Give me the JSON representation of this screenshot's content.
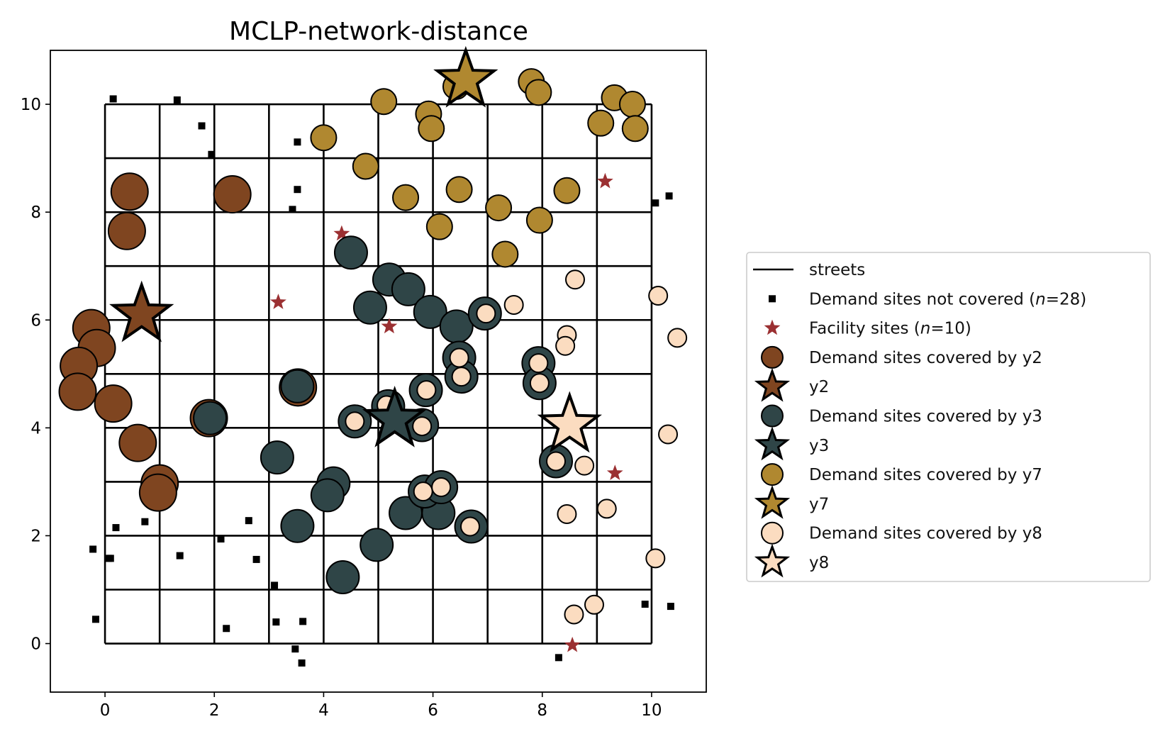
{
  "chart_data": {
    "type": "scatter",
    "title": "MCLP-network-distance",
    "xlabel": "",
    "ylabel": "",
    "xlim": [
      -1,
      11
    ],
    "ylim": [
      -0.9,
      11
    ],
    "xticks": [
      0,
      2,
      4,
      6,
      8,
      10
    ],
    "yticks": [
      0,
      2,
      4,
      6,
      8,
      10
    ],
    "streets": {
      "min": 0,
      "max": 10,
      "step": 1
    },
    "colors": {
      "y2": "#7f4520",
      "y3": "#2f4547",
      "y7": "#b08830",
      "y8": "#fbdcc0",
      "facility": "#9b3032",
      "uncovered": "#000000",
      "street": "#000000"
    },
    "legend": {
      "position": "center-right",
      "entries": [
        {
          "key": "streets",
          "label": "streets"
        },
        {
          "key": "uncovered",
          "label": "Demand sites not covered (",
          "italic": "n",
          "rest": "=28)"
        },
        {
          "key": "facility",
          "label": "Facility sites (",
          "italic": "n",
          "rest": "=10)"
        },
        {
          "key": "y2_sites",
          "label": "Demand sites covered by y2"
        },
        {
          "key": "y2_star",
          "label": "y2"
        },
        {
          "key": "y3_sites",
          "label": "Demand sites covered by y3"
        },
        {
          "key": "y3_star",
          "label": "y3"
        },
        {
          "key": "y7_sites",
          "label": "Demand sites covered by y7"
        },
        {
          "key": "y7_star",
          "label": "y7"
        },
        {
          "key": "y8_sites",
          "label": "Demand sites covered by y8"
        },
        {
          "key": "y8_star",
          "label": "y8"
        }
      ]
    },
    "uncovered": [
      [
        0.15,
        10.1
      ],
      [
        1.32,
        10.08
      ],
      [
        1.77,
        9.6
      ],
      [
        1.95,
        9.07
      ],
      [
        3.52,
        9.3
      ],
      [
        3.52,
        8.42
      ],
      [
        3.43,
        8.05
      ],
      [
        10.07,
        8.17
      ],
      [
        10.32,
        8.3
      ],
      [
        -0.22,
        1.75
      ],
      [
        0.06,
        1.58
      ],
      [
        0.1,
        1.58
      ],
      [
        0.2,
        2.15
      ],
      [
        0.73,
        2.26
      ],
      [
        1.37,
        1.63
      ],
      [
        2.12,
        1.94
      ],
      [
        2.63,
        2.28
      ],
      [
        2.77,
        1.56
      ],
      [
        3.1,
        1.08
      ],
      [
        -0.17,
        0.45
      ],
      [
        2.22,
        0.28
      ],
      [
        3.13,
        0.4
      ],
      [
        3.62,
        0.41
      ],
      [
        3.48,
        -0.1
      ],
      [
        3.6,
        -0.36
      ],
      [
        8.3,
        -0.26
      ],
      [
        9.88,
        0.73
      ],
      [
        10.35,
        0.69
      ]
    ],
    "facilities": [
      [
        4.33,
        7.6
      ],
      [
        3.17,
        6.33
      ],
      [
        5.2,
        5.88
      ],
      [
        9.15,
        8.57
      ],
      [
        9.33,
        3.16
      ],
      [
        8.55,
        -0.03
      ],
      [
        0.67,
        6.1
      ],
      [
        5.3,
        4.15
      ],
      [
        6.6,
        10.45
      ],
      [
        8.5,
        4.05
      ]
    ],
    "selected": [
      {
        "name": "y2",
        "x": 0.67,
        "y": 6.1
      },
      {
        "name": "y3",
        "x": 5.3,
        "y": 4.15
      },
      {
        "name": "y7",
        "x": 6.6,
        "y": 10.45
      },
      {
        "name": "y8",
        "x": 8.5,
        "y": 4.05
      }
    ],
    "covered": {
      "y2": [
        [
          0.45,
          8.38
        ],
        [
          0.4,
          7.65
        ],
        [
          -0.25,
          5.85
        ],
        [
          -0.15,
          5.48
        ],
        [
          -0.48,
          5.15
        ],
        [
          -0.5,
          4.67
        ],
        [
          0.15,
          4.45
        ],
        [
          0.6,
          3.72
        ],
        [
          1.0,
          2.97
        ],
        [
          0.97,
          2.8
        ],
        [
          2.33,
          8.33
        ],
        [
          3.53,
          4.75
        ],
        [
          1.9,
          4.18
        ]
      ],
      "y3": [
        [
          4.5,
          7.25
        ],
        [
          5.2,
          6.75
        ],
        [
          5.55,
          6.57
        ],
        [
          4.85,
          6.23
        ],
        [
          5.95,
          6.15
        ],
        [
          6.43,
          5.88
        ],
        [
          6.95,
          6.12
        ],
        [
          6.48,
          5.3
        ],
        [
          6.52,
          4.95
        ],
        [
          5.87,
          4.7
        ],
        [
          4.57,
          4.12
        ],
        [
          5.18,
          4.4
        ],
        [
          5.8,
          4.05
        ],
        [
          7.93,
          5.2
        ],
        [
          7.95,
          4.83
        ],
        [
          8.25,
          3.38
        ],
        [
          3.52,
          4.77
        ],
        [
          1.92,
          4.18
        ],
        [
          3.15,
          3.45
        ],
        [
          4.18,
          2.97
        ],
        [
          4.07,
          2.75
        ],
        [
          3.52,
          2.18
        ],
        [
          4.97,
          1.83
        ],
        [
          5.5,
          2.42
        ],
        [
          6.1,
          2.42
        ],
        [
          5.85,
          2.82
        ],
        [
          6.15,
          2.9
        ],
        [
          6.7,
          2.17
        ],
        [
          4.35,
          1.23
        ]
      ],
      "y7": [
        [
          5.1,
          10.05
        ],
        [
          5.92,
          9.82
        ],
        [
          5.97,
          9.55
        ],
        [
          4.0,
          9.38
        ],
        [
          4.77,
          8.85
        ],
        [
          5.5,
          8.27
        ],
        [
          6.48,
          8.42
        ],
        [
          6.12,
          7.73
        ],
        [
          7.2,
          8.08
        ],
        [
          7.32,
          7.22
        ],
        [
          7.95,
          7.85
        ],
        [
          8.45,
          8.4
        ],
        [
          7.8,
          10.42
        ],
        [
          7.93,
          10.22
        ],
        [
          9.32,
          10.12
        ],
        [
          9.65,
          10.0
        ],
        [
          9.07,
          9.65
        ],
        [
          9.7,
          9.55
        ],
        [
          6.42,
          10.33
        ]
      ],
      "y8": [
        [
          8.6,
          6.75
        ],
        [
          10.12,
          6.45
        ],
        [
          10.47,
          5.67
        ],
        [
          8.45,
          5.72
        ],
        [
          8.42,
          5.52
        ],
        [
          7.93,
          5.2
        ],
        [
          7.95,
          4.83
        ],
        [
          6.97,
          6.12
        ],
        [
          6.48,
          5.3
        ],
        [
          6.52,
          4.95
        ],
        [
          5.88,
          4.7
        ],
        [
          4.57,
          4.12
        ],
        [
          5.15,
          4.42
        ],
        [
          5.8,
          4.03
        ],
        [
          5.82,
          2.82
        ],
        [
          6.15,
          2.9
        ],
        [
          6.68,
          2.17
        ],
        [
          8.25,
          3.38
        ],
        [
          8.77,
          3.3
        ],
        [
          8.45,
          2.4
        ],
        [
          9.18,
          2.5
        ],
        [
          10.3,
          3.88
        ],
        [
          10.07,
          1.58
        ],
        [
          8.95,
          0.72
        ],
        [
          8.58,
          0.54
        ],
        [
          7.48,
          6.28
        ]
      ]
    }
  }
}
